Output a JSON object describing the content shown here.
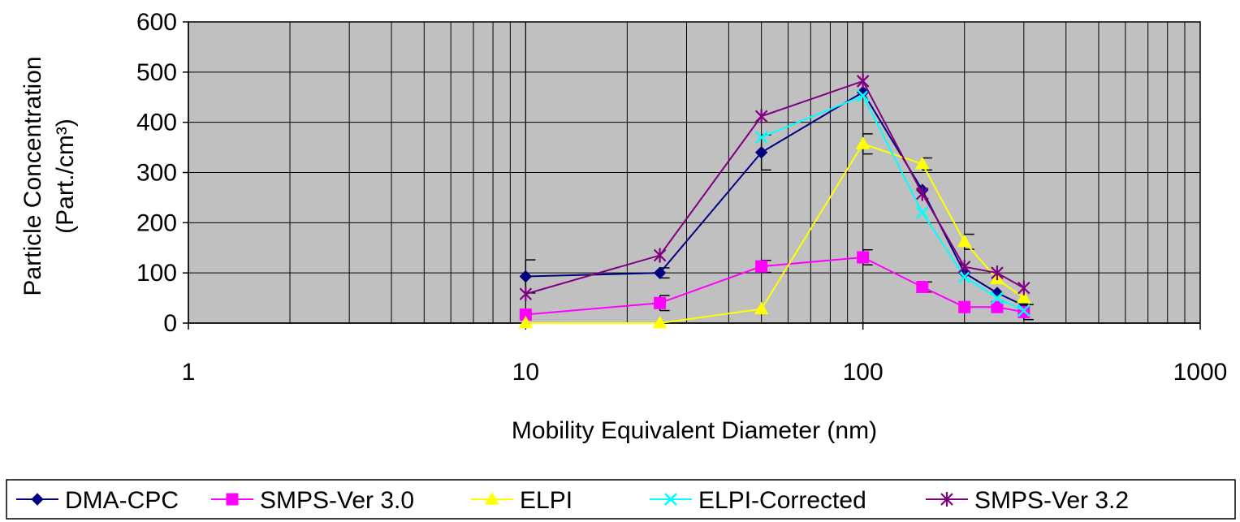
{
  "chart_data": {
    "type": "line",
    "xscale": "log",
    "xlim": [
      1,
      1000
    ],
    "ylim": [
      0,
      600
    ],
    "grid": true,
    "legend_position": "bottom",
    "xlabel": "Mobility Equivalent Diameter (nm)",
    "ylabel_line1": "Particle Concentration",
    "ylabel_line2": "(Part./cm³)",
    "x_tick_labels": [
      "1",
      "10",
      "100",
      "1000"
    ],
    "y_tick_labels": [
      "0",
      "100",
      "200",
      "300",
      "400",
      "500",
      "600"
    ],
    "x": [
      10,
      25,
      50,
      100,
      150,
      200,
      250,
      300
    ],
    "series": [
      {
        "name": "DMA-CPC",
        "color": "#000080",
        "marker": "diamond",
        "values": [
          93,
          100,
          340,
          460,
          265,
          100,
          60,
          35
        ],
        "errors": [
          33,
          10,
          35,
          0,
          0,
          0,
          0,
          0
        ]
      },
      {
        "name": "SMPS-Ver 3.0",
        "color": "#ff00ff",
        "marker": "square",
        "values": [
          17,
          40,
          113,
          131,
          72,
          32,
          32,
          22
        ],
        "errors": [
          0,
          15,
          12,
          15,
          10,
          0,
          0,
          15
        ]
      },
      {
        "name": "ELPI",
        "color": "#ffff00",
        "marker": "triangle",
        "values": [
          0,
          0,
          28,
          357,
          317,
          162,
          88,
          50
        ],
        "errors": [
          0,
          0,
          0,
          20,
          12,
          15,
          0,
          0
        ]
      },
      {
        "name": "ELPI-Corrected",
        "color": "#00ffff",
        "marker": "x",
        "values": [
          null,
          null,
          370,
          453,
          220,
          92,
          50,
          25
        ],
        "errors": [
          0,
          0,
          0,
          0,
          0,
          0,
          0,
          0
        ]
      },
      {
        "name": "SMPS-Ver 3.2",
        "color": "#800080",
        "marker": "star",
        "values": [
          58,
          135,
          412,
          482,
          258,
          112,
          100,
          70
        ],
        "errors": [
          0,
          0,
          0,
          0,
          0,
          0,
          0,
          0
        ]
      }
    ]
  }
}
